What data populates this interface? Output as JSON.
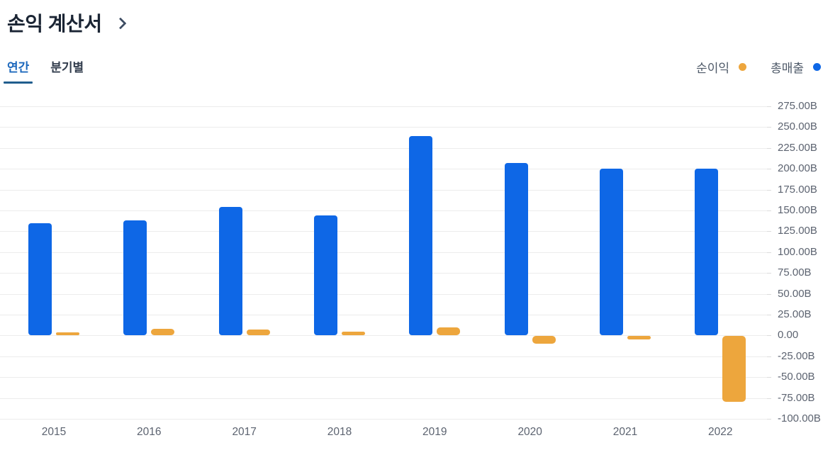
{
  "header": {
    "title": "손익 계산서"
  },
  "tabs": {
    "annual": "연간",
    "quarterly": "분기별",
    "active": "연간"
  },
  "legend": [
    {
      "label": "순이익",
      "color": "#eda63d"
    },
    {
      "label": "총매출",
      "color": "#0e67e6"
    }
  ],
  "chart_data": {
    "type": "bar",
    "title": "손익 계산서",
    "categories": [
      "2015",
      "2016",
      "2017",
      "2018",
      "2019",
      "2020",
      "2021",
      "2022"
    ],
    "series": [
      {
        "name": "총매출",
        "color": "#0e67e6",
        "values": [
          135,
          138,
          154,
          144,
          239,
          207,
          200,
          200
        ]
      },
      {
        "name": "순이익",
        "color": "#eda63d",
        "values": [
          2,
          8,
          7,
          5,
          10,
          -9,
          -2,
          -79
        ]
      }
    ],
    "unit": "B",
    "ylim": [
      -100,
      275
    ],
    "y_tick_step": 25,
    "y_ticks": [
      "275.00B",
      "250.00B",
      "225.00B",
      "200.00B",
      "175.00B",
      "150.00B",
      "125.00B",
      "100.00B",
      "75.00B",
      "50.00B",
      "25.00B",
      "0.00",
      "-25.00B",
      "-50.00B",
      "-75.00B",
      "-100.00B"
    ],
    "grid": true,
    "legend_position": "top-right"
  }
}
